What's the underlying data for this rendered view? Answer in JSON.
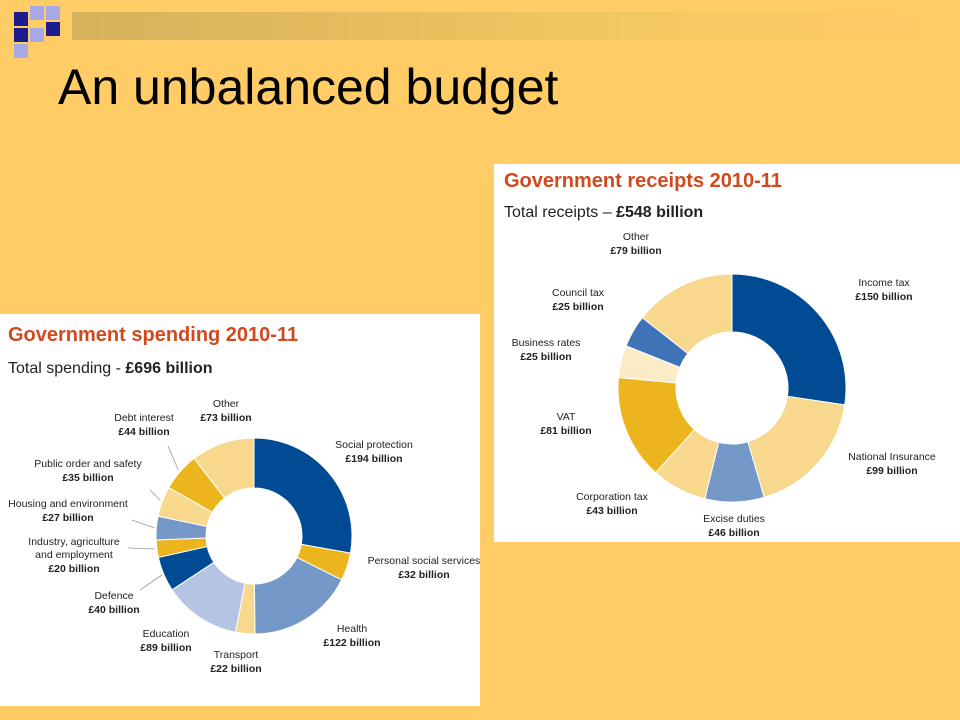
{
  "slide": {
    "title": "An unbalanced budget",
    "colors": {
      "background": "#FFCC66",
      "deco_navy": "#1C1C8C",
      "deco_lavender": "#A8A8E6"
    }
  },
  "chart_data": [
    {
      "type": "pie",
      "donut": true,
      "title": "Government spending 2010-11",
      "subtitle_prefix": "Total spending - ",
      "subtitle_value": "£696 billion",
      "slices": [
        {
          "label": "Social protection",
          "value_label": "£194 billion",
          "value": 194,
          "color": "#004B93"
        },
        {
          "label": "Personal social services",
          "value_label": "£32 billion",
          "value": 32,
          "color": "#EDB51D"
        },
        {
          "label": "Health",
          "value_label": "£122 billion",
          "value": 122,
          "color": "#7498C8"
        },
        {
          "label": "Transport",
          "value_label": "£22 billion",
          "value": 22,
          "color": "#F7D88D"
        },
        {
          "label": "Education",
          "value_label": "£89 billion",
          "value": 89,
          "color": "#B4C4E2"
        },
        {
          "label": "Defence",
          "value_label": "£40 billion",
          "value": 40,
          "color": "#004B93"
        },
        {
          "label": "Industry, agriculture and employment",
          "label_lines": [
            "Industry, agriculture",
            "and employment"
          ],
          "value_label": "£20 billion",
          "value": 20,
          "color": "#EDB51D"
        },
        {
          "label": "Housing and environment",
          "value_label": "£27 billion",
          "value": 27,
          "color": "#7498C8"
        },
        {
          "label": "Public order and safety",
          "value_label": "£35 billion",
          "value": 35,
          "color": "#F7D88D"
        },
        {
          "label": "Debt interest",
          "value_label": "£44 billion",
          "value": 44,
          "color": "#EDB51D"
        },
        {
          "label": "Other",
          "value_label": "£73 billion",
          "value": 73,
          "color": "#F7D88D"
        }
      ]
    },
    {
      "type": "pie",
      "donut": true,
      "title": "Government receipts 2010-11",
      "subtitle_prefix": "Total receipts – ",
      "subtitle_value": "£548 billion",
      "slices": [
        {
          "label": "Income tax",
          "value_label": "£150 billion",
          "value": 150,
          "color": "#004B93"
        },
        {
          "label": "National Insurance",
          "value_label": "£99 billion",
          "value": 99,
          "color": "#F7D88D"
        },
        {
          "label": "Excise duties",
          "value_label": "£46 billion",
          "value": 46,
          "color": "#7498C8"
        },
        {
          "label": "Corporation tax",
          "value_label": "£43 billion",
          "value": 43,
          "color": "#F7D88D"
        },
        {
          "label": "VAT",
          "value_label": "£81 billion",
          "value": 81,
          "color": "#EDB51D"
        },
        {
          "label": "Business rates",
          "value_label": "£25 billion",
          "value": 25,
          "color": "#FBEBC7"
        },
        {
          "label": "Council tax",
          "value_label": "£25 billion",
          "value": 25,
          "color": "#3F73B8"
        },
        {
          "label": "Other",
          "value_label": "£79 billion",
          "value": 79,
          "color": "#F7D88D"
        }
      ]
    }
  ]
}
